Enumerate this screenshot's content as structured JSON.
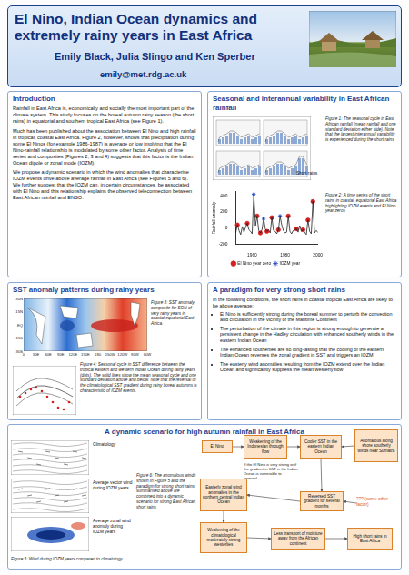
{
  "header": {
    "title": "El Nino, Indian Ocean dynamics and extremely rainy years in East Africa",
    "authors": "Emily Black, Julia Slingo and Ken Sperber",
    "email": "emily@met.rdg.ac.uk"
  },
  "introduction": {
    "heading": "Introduction",
    "paragraphs": [
      "Rainfall in East Africa is, economically and socially the most important part of the climate system. This study focuses on the boreal autumn rainy season (the short rains) in equatorial and southern tropical East Africa (see Figure 1).",
      "Much has been published about the association between El Nino and high rainfall in tropical, coastal East Africa. Figure 2, however, shows that precipitation during some El Ninos (for example 1986-1987) is average or low implying that the El Nino-rainfall relationship is modulated by some other factor. Analysis of time series and composites (Figures 2, 3 and 4) suggests that this factor is the Indian Ocean dipole or zonal mode (IOZM).",
      "We propose a dynamic scenario in which the wind anomalies that characterise IOZM events drive above average rainfall in East Africa (see Figures 5 and 6). We further suggest that the IOZM can, in certain circumstances, be associated with El Nino and this relationship explains the observed teleconnection between East African rainfall and ENSO."
    ]
  },
  "seasonal": {
    "heading": "Seasonal and interannual variability in East African rainfall",
    "figure1_caption": "Figure 1: The seasonal cycle in East African rainfall (mean rainfall and one standard deviation either side). Note that the largest interannual variability is experienced during the short rains",
    "short_rains_label": "Short rains",
    "figure2_caption": "Figure 2: A time series of the short rains in coastal, equatorial East Africa highlighting IOZM events and El Nino year zeros"
  },
  "chart_data": {
    "type": "line",
    "y_label": "Rainfall anomaly",
    "categories": [
      null,
      null,
      null,
      null,
      null,
      null,
      null,
      null,
      null,
      null,
      "1960",
      null,
      null,
      null,
      null,
      null,
      null,
      null,
      null,
      null,
      null,
      null,
      null,
      null,
      null,
      null,
      null,
      null,
      null,
      null,
      "1980",
      null,
      null,
      null,
      null,
      null,
      null,
      null,
      null,
      null,
      null,
      null,
      null,
      null,
      null,
      null,
      null,
      null,
      null,
      null,
      "2000"
    ],
    "values": [
      -60,
      40,
      -30,
      -80,
      20,
      -50,
      10,
      60,
      -20,
      -40,
      -70,
      420,
      30,
      150,
      -30,
      -60,
      -20,
      120,
      -10,
      -40,
      -20,
      -60,
      130,
      -30,
      -40,
      -70,
      -20,
      150,
      40,
      -30,
      -60,
      -50,
      150,
      -40,
      -70,
      -30,
      -20,
      -10,
      -50,
      30,
      -40,
      -20,
      -50,
      -80,
      100,
      -40,
      -70,
      330,
      -60,
      -30,
      -50
    ],
    "color": "#222222",
    "series": [
      {
        "name": "El Nino year zero",
        "type": "scatter",
        "marker": "circle",
        "color": "#d62020",
        "values": [
          null,
          40,
          null,
          null,
          null,
          null,
          null,
          60,
          null,
          null,
          null,
          null,
          null,
          150,
          null,
          -60,
          null,
          null,
          null,
          -40,
          null,
          null,
          130,
          null,
          null,
          null,
          -20,
          null,
          null,
          null,
          null,
          null,
          150,
          null,
          null,
          null,
          null,
          -10,
          null,
          null,
          null,
          -20,
          null,
          null,
          100,
          null,
          null,
          330,
          null,
          null,
          null
        ]
      },
      {
        "name": "IOZM year",
        "type": "scatter",
        "marker": "star",
        "color": "#1a3fc4",
        "values": [
          null,
          null,
          null,
          null,
          null,
          null,
          null,
          null,
          null,
          null,
          null,
          420,
          null,
          null,
          null,
          null,
          null,
          120,
          null,
          null,
          null,
          null,
          130,
          null,
          null,
          null,
          null,
          150,
          null,
          null,
          null,
          null,
          null,
          null,
          null,
          null,
          null,
          null,
          null,
          null,
          null,
          null,
          null,
          null,
          100,
          null,
          null,
          330,
          null,
          null,
          null
        ]
      }
    ],
    "ylim": [
      -200,
      450
    ],
    "yticks": [
      -200,
      0,
      200,
      400
    ],
    "grid": false,
    "legend": "bottom"
  },
  "sst": {
    "heading": "SST anomaly patterns during rainy years",
    "map_lat_ticks": [
      "30N",
      "15N",
      "EQ",
      "15S",
      "30S"
    ],
    "map_lon_ticks": [
      "0",
      "30E",
      "60E",
      "90E",
      "120E",
      "150E",
      "180",
      "150W",
      "120W",
      "90W",
      "60W"
    ],
    "figure3_caption": "Figure 3: SST anomaly composite for SON of very rainy years in coastal equatorial East Africa.",
    "figure4_caption": "Figure 4: Seasonal cycle in SST difference between the tropical eastern and western Indian Ocean during rainy years (dots). The solid lines show the mean seasonal cycle and one standard deviation above and below. Note that the reversal of the climatological SST gradient during rainy boreal autumns is characteristic of IOZM events."
  },
  "paradigm": {
    "heading": "A paradigm for very strong short rains",
    "intro": "In the following conditions, the short rains in coastal tropical East Africa are likely to be above average:",
    "bullets": [
      "El Nino is sufficiently strong during the boreal summer to perturb the convection and circulation in the vicinity of the Maritime Continent",
      "The perturbation of the climate in this region is strong enough to generate a persistent change in the Hadley circulation with enhanced southerly winds in the eastern Indian Ocean",
      "The enhanced southerlies are so long-lasting that the cooling of the eastern Indian Ocean reverses the zonal gradient in SST and triggers an IOZM",
      "The easterly wind anomalies resulting from the IOZM extend over the Indian Ocean and significantly suppress the mean westerly flow"
    ]
  },
  "scenario": {
    "heading": "A dynamic scenario for high autumn rainfall in East Africa",
    "figure5_labels": [
      "Climatology",
      "Average vector wind during IOZM years",
      "Average zonal wind anomaly during IOZM years"
    ],
    "figure5_caption": "Figure 5: Wind during IOZM years compared to climatology",
    "figure6_caption": "Figure 6: The anomalous winds shown in Figure 5 and the paradigm for strong short rains summarised above are combined into a dynamic scenario for strong East African short rains",
    "nodes": [
      "El Nino",
      "Weakening of the Indonesian through flow",
      "Cooler SST in the eastern Indian Ocean",
      "Anomalous along shore southerly winds near Sumatra",
      "If the El Nino is very strong or if the gradient in SST in the Indian Ocean is vulnerable to reversal...",
      "Reversed SST gradient for several months",
      "??? (some other factor)",
      "Easterly zonal wind anomalies in the northern central Indian Ocean",
      "Weakening of the climatological moderately strong westerlies",
      "Less transport of moisture away from the African continent",
      "High short rains in East Africa"
    ]
  }
}
